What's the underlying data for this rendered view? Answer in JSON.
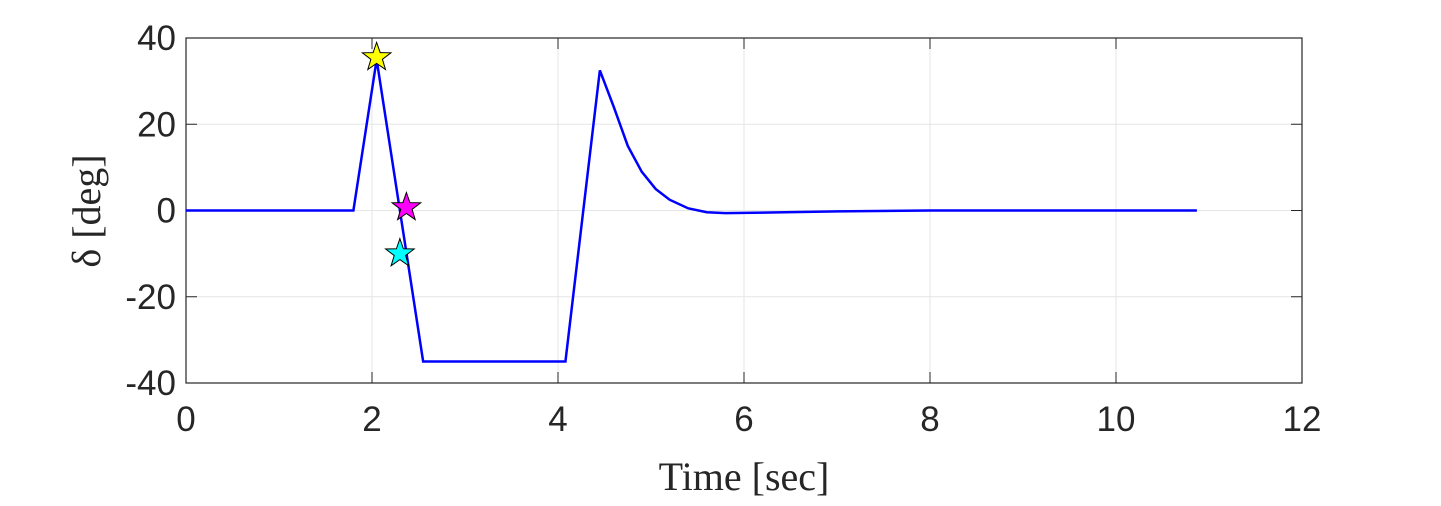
{
  "chart_data": {
    "type": "line",
    "xlabel": "Time [sec]",
    "ylabel": "δ [deg]",
    "x": [
      0,
      1.8,
      2.05,
      2.55,
      4.08,
      4.45,
      4.6,
      4.75,
      4.9,
      5.05,
      5.2,
      5.4,
      5.6,
      5.8,
      6.2,
      7,
      8,
      9,
      10,
      10.87
    ],
    "series": [
      {
        "color": "#0000ff",
        "values": [
          0,
          0,
          35,
          -35,
          -35,
          32.5,
          24,
          15,
          9,
          5,
          2.5,
          0.5,
          -0.4,
          -0.6,
          -0.5,
          -0.2,
          0,
          0,
          0,
          0
        ]
      }
    ],
    "markers": [
      {
        "x": 2.05,
        "y": 35.5,
        "color": "#ffff00"
      },
      {
        "x": 2.37,
        "y": 0.7,
        "color": "#ff00ff"
      },
      {
        "x": 2.3,
        "y": -10,
        "color": "#00ffff"
      }
    ],
    "xlim": [
      0,
      12
    ],
    "xticks": [
      0,
      2,
      4,
      6,
      8,
      10,
      12
    ],
    "ylim": [
      -40,
      40
    ],
    "yticks": [
      -40,
      -20,
      0,
      20,
      40
    ],
    "grid": true
  }
}
